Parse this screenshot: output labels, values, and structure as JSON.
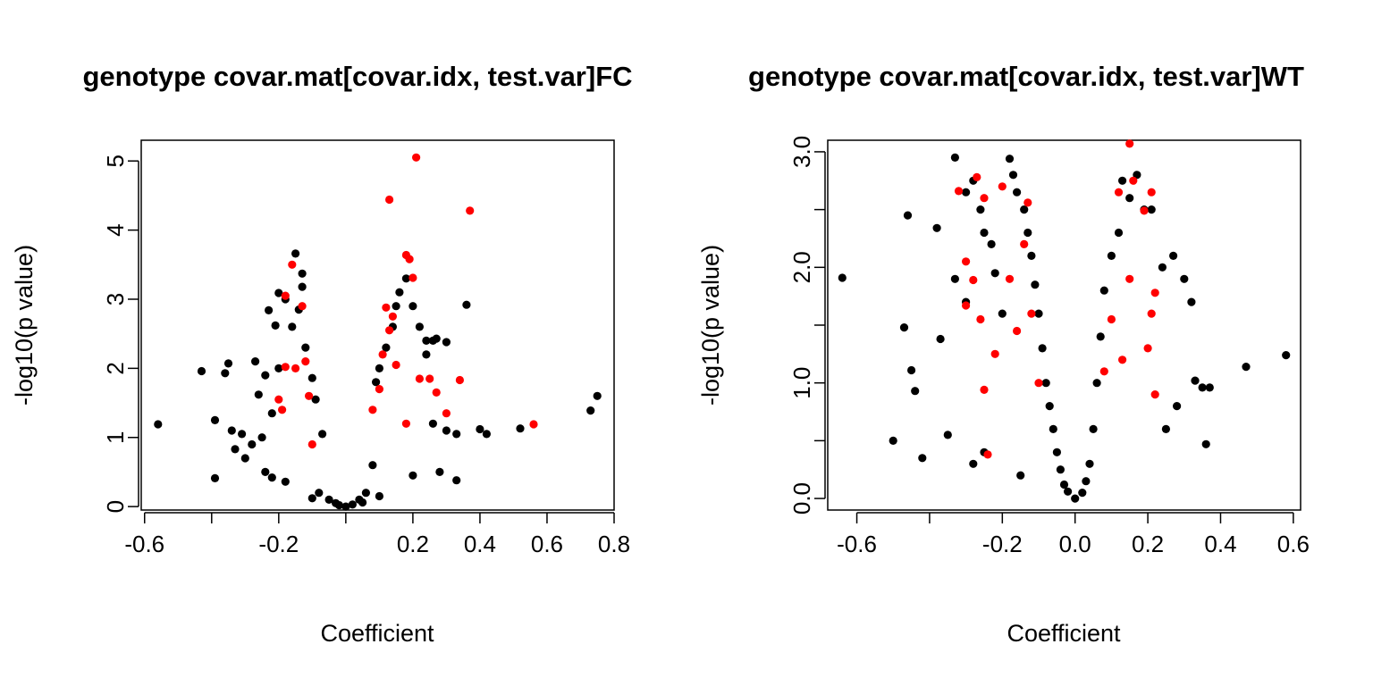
{
  "colors": {
    "background": "#ffffff",
    "points": "#000000",
    "highlight": "#ff0000"
  },
  "chart_data": [
    {
      "type": "scatter",
      "title": "genotype covar.mat[covar.idx, test.var]FC",
      "xlabel": "Coefficient",
      "ylabel": "-log10(p value)",
      "xlim": [
        -0.61,
        0.8
      ],
      "ylim": [
        -0.05,
        5.3
      ],
      "x_ticks": [
        -0.6,
        -0.4,
        -0.2,
        0.0,
        0.2,
        0.4,
        0.6,
        0.8
      ],
      "x_tick_labels": [
        "-0.6",
        "",
        "-0.2",
        "",
        "0.2",
        "0.4",
        "0.6",
        "0.8"
      ],
      "y_ticks": [
        0,
        1,
        2,
        3,
        4,
        5
      ],
      "y_tick_labels": [
        "0",
        "1",
        "2",
        "3",
        "4",
        "5"
      ],
      "grid": false,
      "series": [
        {
          "color": "#000000",
          "points": [
            [
              -0.56,
              1.19
            ],
            [
              -0.43,
              1.96
            ],
            [
              -0.39,
              1.25
            ],
            [
              -0.39,
              0.41
            ],
            [
              -0.36,
              1.93
            ],
            [
              -0.35,
              2.07
            ],
            [
              -0.34,
              1.1
            ],
            [
              -0.33,
              0.83
            ],
            [
              -0.3,
              0.7
            ],
            [
              -0.27,
              2.1
            ],
            [
              -0.26,
              1.62
            ],
            [
              -0.24,
              1.9
            ],
            [
              -0.23,
              2.84
            ],
            [
              -0.21,
              2.62
            ],
            [
              -0.2,
              3.09
            ],
            [
              -0.18,
              3.0
            ],
            [
              -0.15,
              3.66
            ],
            [
              -0.13,
              3.37
            ],
            [
              -0.13,
              3.18
            ],
            [
              -0.14,
              2.85
            ],
            [
              -0.16,
              2.6
            ],
            [
              -0.12,
              2.3
            ],
            [
              -0.1,
              1.86
            ],
            [
              -0.09,
              1.55
            ],
            [
              -0.07,
              1.05
            ],
            [
              -0.25,
              1.0
            ],
            [
              -0.22,
              1.35
            ],
            [
              -0.2,
              2.0
            ],
            [
              -0.28,
              0.9
            ],
            [
              -0.31,
              1.05
            ],
            [
              -0.24,
              0.5
            ],
            [
              -0.22,
              0.42
            ],
            [
              -0.18,
              0.36
            ],
            [
              -0.1,
              0.12
            ],
            [
              -0.08,
              0.2
            ],
            [
              -0.05,
              0.1
            ],
            [
              -0.03,
              0.05
            ],
            [
              -0.02,
              0.02
            ],
            [
              0.0,
              0.0
            ],
            [
              0.02,
              0.03
            ],
            [
              0.04,
              0.1
            ],
            [
              0.06,
              0.2
            ],
            [
              0.08,
              0.6
            ],
            [
              0.09,
              1.8
            ],
            [
              0.1,
              2.0
            ],
            [
              0.12,
              2.3
            ],
            [
              0.14,
              2.6
            ],
            [
              0.15,
              2.9
            ],
            [
              0.16,
              3.1
            ],
            [
              0.18,
              3.3
            ],
            [
              0.2,
              2.9
            ],
            [
              0.22,
              2.6
            ],
            [
              0.24,
              2.4
            ],
            [
              0.26,
              2.4
            ],
            [
              0.27,
              2.43
            ],
            [
              0.3,
              2.38
            ],
            [
              0.24,
              2.2
            ],
            [
              0.26,
              1.2
            ],
            [
              0.3,
              1.1
            ],
            [
              0.33,
              1.05
            ],
            [
              0.36,
              2.92
            ],
            [
              0.4,
              1.12
            ],
            [
              0.42,
              1.05
            ],
            [
              0.52,
              1.13
            ],
            [
              0.73,
              1.39
            ],
            [
              0.75,
              1.6
            ],
            [
              0.33,
              0.38
            ],
            [
              0.28,
              0.5
            ],
            [
              0.2,
              0.45
            ],
            [
              0.1,
              0.15
            ],
            [
              0.05,
              0.06
            ]
          ]
        },
        {
          "color": "#ff0000",
          "points": [
            [
              0.21,
              5.05
            ],
            [
              0.13,
              4.44
            ],
            [
              0.37,
              4.28
            ],
            [
              0.18,
              3.64
            ],
            [
              0.19,
              3.58
            ],
            [
              0.2,
              3.31
            ],
            [
              -0.16,
              3.5
            ],
            [
              -0.18,
              3.05
            ],
            [
              -0.13,
              2.9
            ],
            [
              0.12,
              2.88
            ],
            [
              0.14,
              2.75
            ],
            [
              0.13,
              2.55
            ],
            [
              0.11,
              2.2
            ],
            [
              0.15,
              2.05
            ],
            [
              0.22,
              1.85
            ],
            [
              0.25,
              1.85
            ],
            [
              0.34,
              1.83
            ],
            [
              0.27,
              1.65
            ],
            [
              0.3,
              1.35
            ],
            [
              0.56,
              1.19
            ],
            [
              -0.18,
              2.02
            ],
            [
              -0.15,
              2.0
            ],
            [
              -0.12,
              2.1
            ],
            [
              -0.11,
              1.6
            ],
            [
              -0.2,
              1.55
            ],
            [
              -0.19,
              1.4
            ],
            [
              -0.1,
              0.9
            ],
            [
              0.08,
              1.4
            ],
            [
              0.1,
              1.7
            ],
            [
              0.18,
              1.2
            ]
          ]
        }
      ]
    },
    {
      "type": "scatter",
      "title": "genotype covar.mat[covar.idx, test.var]WT",
      "xlabel": "Coefficient",
      "ylabel": "-log10(p value)",
      "xlim": [
        -0.68,
        0.62
      ],
      "ylim": [
        -0.1,
        3.1
      ],
      "x_ticks": [
        -0.6,
        -0.4,
        -0.2,
        0.0,
        0.2,
        0.4,
        0.6
      ],
      "x_tick_labels": [
        "-0.6",
        "",
        "-0.2",
        "0.0",
        "0.2",
        "0.4",
        "0.6"
      ],
      "y_ticks": [
        0.0,
        0.5,
        1.0,
        1.5,
        2.0,
        2.5,
        3.0
      ],
      "y_tick_labels": [
        "0.0",
        "",
        "1.0",
        "",
        "2.0",
        "",
        "3.0"
      ],
      "grid": false,
      "series": [
        {
          "color": "#000000",
          "points": [
            [
              -0.64,
              1.91
            ],
            [
              -0.5,
              0.5
            ],
            [
              -0.46,
              2.45
            ],
            [
              -0.47,
              1.48
            ],
            [
              -0.45,
              1.11
            ],
            [
              -0.44,
              0.93
            ],
            [
              -0.42,
              0.35
            ],
            [
              -0.38,
              2.34
            ],
            [
              -0.37,
              1.38
            ],
            [
              -0.35,
              0.55
            ],
            [
              -0.33,
              2.95
            ],
            [
              -0.3,
              2.65
            ],
            [
              -0.28,
              2.75
            ],
            [
              -0.26,
              2.5
            ],
            [
              -0.25,
              2.3
            ],
            [
              -0.23,
              2.2
            ],
            [
              -0.22,
              1.95
            ],
            [
              -0.2,
              1.6
            ],
            [
              -0.18,
              2.94
            ],
            [
              -0.17,
              2.8
            ],
            [
              -0.16,
              2.65
            ],
            [
              -0.14,
              2.5
            ],
            [
              -0.13,
              2.3
            ],
            [
              -0.12,
              2.1
            ],
            [
              -0.11,
              1.85
            ],
            [
              -0.1,
              1.6
            ],
            [
              -0.09,
              1.3
            ],
            [
              -0.08,
              1.0
            ],
            [
              -0.07,
              0.8
            ],
            [
              -0.06,
              0.6
            ],
            [
              -0.05,
              0.4
            ],
            [
              -0.04,
              0.25
            ],
            [
              -0.03,
              0.12
            ],
            [
              -0.02,
              0.06
            ],
            [
              0.0,
              0.0
            ],
            [
              0.02,
              0.05
            ],
            [
              0.03,
              0.15
            ],
            [
              0.04,
              0.3
            ],
            [
              0.05,
              0.6
            ],
            [
              0.06,
              1.0
            ],
            [
              0.07,
              1.4
            ],
            [
              0.08,
              1.8
            ],
            [
              0.1,
              2.1
            ],
            [
              0.12,
              2.3
            ],
            [
              0.13,
              2.75
            ],
            [
              0.15,
              2.6
            ],
            [
              0.17,
              2.8
            ],
            [
              0.19,
              2.5
            ],
            [
              0.21,
              2.5
            ],
            [
              0.24,
              2.0
            ],
            [
              0.27,
              2.1
            ],
            [
              0.3,
              1.9
            ],
            [
              0.32,
              1.7
            ],
            [
              0.33,
              1.02
            ],
            [
              0.35,
              0.96
            ],
            [
              0.37,
              0.96
            ],
            [
              0.36,
              0.47
            ],
            [
              0.47,
              1.14
            ],
            [
              0.58,
              1.24
            ],
            [
              0.28,
              0.8
            ],
            [
              0.25,
              0.6
            ],
            [
              -0.28,
              0.3
            ],
            [
              -0.25,
              0.4
            ],
            [
              -0.15,
              0.2
            ],
            [
              -0.3,
              1.7
            ],
            [
              -0.33,
              1.9
            ]
          ]
        },
        {
          "color": "#ff0000",
          "points": [
            [
              0.15,
              3.07
            ],
            [
              0.16,
              2.75
            ],
            [
              0.21,
              2.65
            ],
            [
              0.12,
              2.65
            ],
            [
              0.19,
              2.49
            ],
            [
              -0.32,
              2.66
            ],
            [
              -0.27,
              2.78
            ],
            [
              -0.25,
              2.6
            ],
            [
              -0.2,
              2.7
            ],
            [
              -0.13,
              2.56
            ],
            [
              -0.3,
              2.05
            ],
            [
              -0.28,
              1.89
            ],
            [
              -0.3,
              1.67
            ],
            [
              -0.26,
              1.55
            ],
            [
              -0.18,
              1.9
            ],
            [
              -0.16,
              1.45
            ],
            [
              -0.22,
              1.25
            ],
            [
              -0.25,
              0.94
            ],
            [
              -0.24,
              0.38
            ],
            [
              0.22,
              1.78
            ],
            [
              0.21,
              1.6
            ],
            [
              0.2,
              1.3
            ],
            [
              0.22,
              0.9
            ],
            [
              0.1,
              1.55
            ],
            [
              0.13,
              1.2
            ],
            [
              0.08,
              1.1
            ],
            [
              -0.1,
              1.0
            ],
            [
              -0.12,
              1.6
            ],
            [
              -0.14,
              2.2
            ],
            [
              0.15,
              1.9
            ]
          ]
        }
      ]
    }
  ]
}
